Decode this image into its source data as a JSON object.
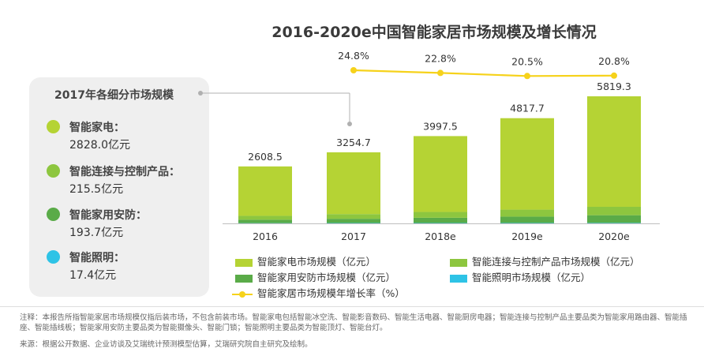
{
  "chart_data": {
    "type": "bar",
    "title": "2016-2020e中国智能家居市场规模及增长情况",
    "categories": [
      "2016",
      "2017",
      "2018e",
      "2019e",
      "2020e"
    ],
    "totals": [
      "2608.5",
      "3254.7",
      "3997.5",
      "4817.7",
      "5819.3"
    ],
    "total_values": [
      2608.5,
      3254.7,
      3997.5,
      4817.7,
      5819.3
    ],
    "series": [
      {
        "name": "智能家电市场规模（亿元）",
        "color": "#b5d334",
        "stack": true,
        "values": [
          2263,
          2828.0,
          3475,
          4188,
          5060
        ]
      },
      {
        "name": "智能连接与控制产品市场规模（亿元）",
        "color": "#8dc63f",
        "stack": true,
        "values": [
          178,
          215.5,
          265,
          320,
          385
        ]
      },
      {
        "name": "智能家用安防市场规模（亿元）",
        "color": "#5aab48",
        "stack": true,
        "values": [
          155,
          193.7,
          240,
          290,
          352
        ]
      },
      {
        "name": "智能照明市场规模（亿元）",
        "color": "#2ec3e6",
        "stack": true,
        "values": [
          12.5,
          17.4,
          17.5,
          19.7,
          22.3
        ]
      }
    ],
    "line_series": {
      "name": "智能家居市场规模年增长率（%）",
      "color": "#f6d21b",
      "categories": [
        "2017",
        "2018e",
        "2019e",
        "2020e"
      ],
      "values": [
        24.8,
        22.8,
        20.5,
        20.8
      ],
      "labels": [
        "24.8%",
        "22.8%",
        "20.5%",
        "20.8%"
      ]
    },
    "ylim": [
      0,
      6000
    ]
  },
  "side_panel": {
    "title": "2017年各细分市场规模",
    "items": [
      {
        "name": "智能家电：",
        "value": "2828.0亿元",
        "color": "#b5d334"
      },
      {
        "name": "智能连接与控制产品：",
        "value": "215.5亿元",
        "color": "#8dc63f"
      },
      {
        "name": "智能家用安防：",
        "value": "193.7亿元",
        "color": "#5aab48"
      },
      {
        "name": "智能照明：",
        "value": "17.4亿元",
        "color": "#2ec3e6"
      }
    ]
  },
  "notes": {
    "note": "注释：本报告所指智能家居市场规模仅指后装市场，不包含前装市场。智能家电包括智能冰空洗、智能影音数码、智能生活电器、智能厨房电器；智能连接与控制产品主要品类为智能家用路由器、智能插座、智能插线板；智能家用安防主要品类为智能摄像头、智能门锁；智能照明主要品类为智能顶灯、智能台灯。",
    "source": "来源：根据公开数据、企业访谈及艾瑞统计预测模型估算，艾瑞研究院自主研究及绘制。"
  }
}
